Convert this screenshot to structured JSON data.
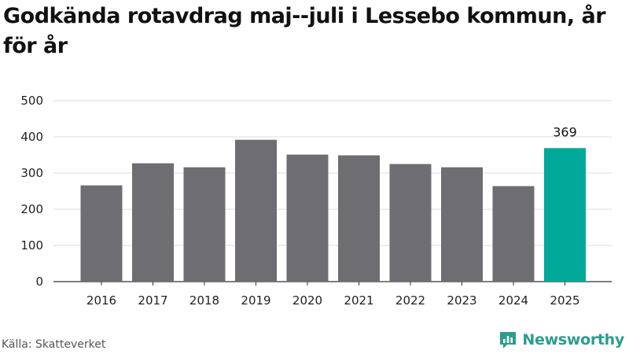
{
  "chart_data": {
    "type": "bar",
    "title": "Godkända rotavdrag maj--juli i Lessebo kommun, år för år",
    "categories": [
      "2016",
      "2017",
      "2018",
      "2019",
      "2020",
      "2021",
      "2022",
      "2023",
      "2024",
      "2025"
    ],
    "values": [
      266,
      327,
      316,
      392,
      351,
      349,
      325,
      316,
      264,
      369
    ],
    "ylim": [
      0,
      500
    ],
    "yticks": [
      0,
      100,
      200,
      300,
      400,
      500
    ],
    "grid": true,
    "highlight_index": 9,
    "highlight_label": "369",
    "bar_color": "#6e6d72",
    "highlight_color": "#00a99a",
    "grid_color": "#dddddd"
  },
  "footer": {
    "source": "Källa: Skatteverket",
    "brand": "Newsworthy",
    "brand_color": "#2a9d8f",
    "brand_icon": "newsworthy-logo-icon"
  }
}
